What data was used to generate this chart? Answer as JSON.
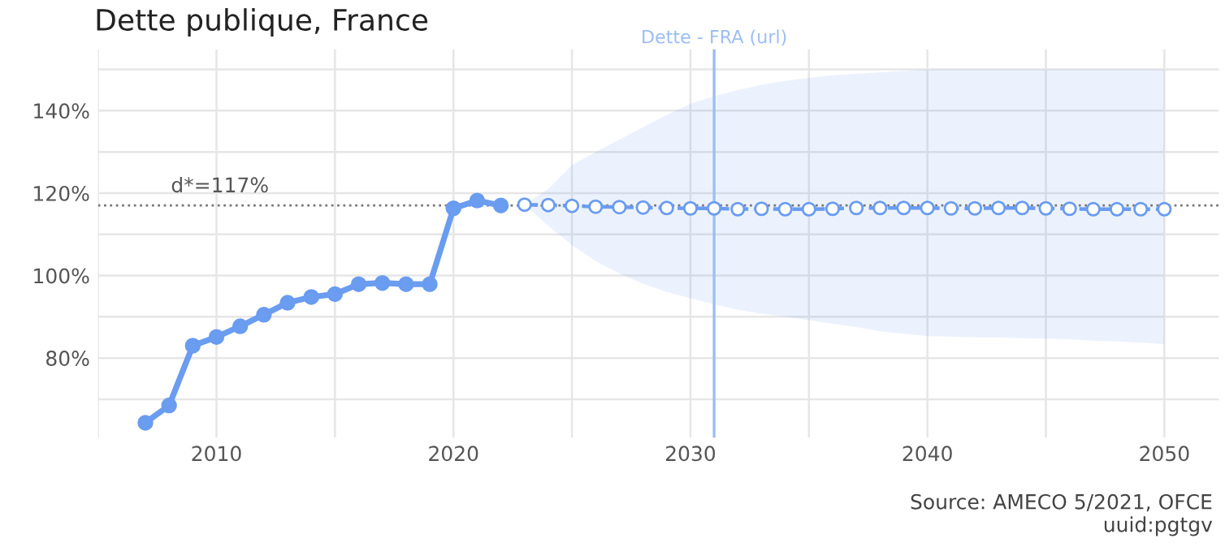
{
  "chart_data": {
    "type": "line",
    "title": "Dette publique, France",
    "x": [
      2007,
      2008,
      2009,
      2010,
      2011,
      2012,
      2013,
      2014,
      2015,
      2016,
      2017,
      2018,
      2019,
      2020,
      2021,
      2022
    ],
    "series": [
      {
        "color": "#6a9cf0",
        "line_style": "solid",
        "values": [
          64.3,
          68.5,
          83.0,
          85.1,
          87.7,
          90.5,
          93.4,
          94.8,
          95.5,
          97.9,
          98.2,
          97.9,
          97.9,
          116.3,
          118.2,
          117.0
        ]
      },
      {
        "color": "#6a9cf0",
        "line_style": "dashed",
        "x": [
          2023,
          2024,
          2025,
          2026,
          2027,
          2028,
          2029,
          2030,
          2031,
          2032,
          2033,
          2034,
          2035,
          2036,
          2037,
          2038,
          2039,
          2040,
          2041,
          2042,
          2043,
          2044,
          2045,
          2046,
          2047,
          2048,
          2049,
          2050
        ],
        "values": [
          117.2,
          117.1,
          116.9,
          116.7,
          116.6,
          116.5,
          116.4,
          116.3,
          116.3,
          116.1,
          116.2,
          116.1,
          116.1,
          116.2,
          116.4,
          116.4,
          116.4,
          116.4,
          116.3,
          116.3,
          116.4,
          116.4,
          116.3,
          116.2,
          116.1,
          116.1,
          116.1,
          116.1
        ],
        "lower": [
          117.2,
          112,
          107.4,
          103.5,
          100.5,
          98,
          96,
          94.5,
          93,
          91.7,
          90.7,
          90,
          89.2,
          88.3,
          87.5,
          86.5,
          85.9,
          85.3,
          85.2,
          85,
          85,
          84.8,
          84.7,
          84.5,
          84.2,
          84,
          83.7,
          83.4
        ],
        "upper": [
          117.2,
          121,
          126.8,
          130,
          133,
          136,
          139,
          141.7,
          143.5,
          145,
          146.3,
          147.2,
          148,
          148.6,
          149,
          149.3,
          149.6,
          150,
          150,
          150,
          150,
          150,
          150,
          150,
          150,
          150,
          150,
          150
        ]
      }
    ],
    "xlim": [
      2005,
      2052.3
    ],
    "ylim": [
      60.7,
      154.9
    ],
    "xticks": [
      {
        "value": 2005,
        "label": null
      },
      2010,
      {
        "value": 2015,
        "label": null
      },
      2020,
      {
        "value": 2025,
        "label": null
      },
      2030,
      {
        "value": 2035,
        "label": null
      },
      2040,
      {
        "value": 2045,
        "label": null
      },
      2050
    ],
    "yticks": [
      {
        "value": 70,
        "label": null
      },
      {
        "value": 80,
        "label": "80%"
      },
      {
        "value": 90,
        "label": null
      },
      {
        "value": 100,
        "label": "100%"
      },
      {
        "value": 110,
        "label": null
      },
      {
        "value": 120,
        "label": "120%"
      },
      {
        "value": 130,
        "label": null
      },
      {
        "value": 140,
        "label": "140%"
      },
      {
        "value": 150,
        "label": null
      }
    ],
    "ref_lines": [
      {
        "axis": "y",
        "value": 117,
        "label": "d*=117%",
        "color": "#777777",
        "line_style": "dotted"
      },
      {
        "axis": "x",
        "value": 2031,
        "label": "Dette - FRA (url)",
        "color": "#9dbdf2",
        "line_style": "solid"
      }
    ],
    "annotations": [
      "Source: AMECO 5/2021, OFCE\nuuid:pgtgv"
    ],
    "grid": true,
    "legend": false,
    "marker": "circle"
  }
}
